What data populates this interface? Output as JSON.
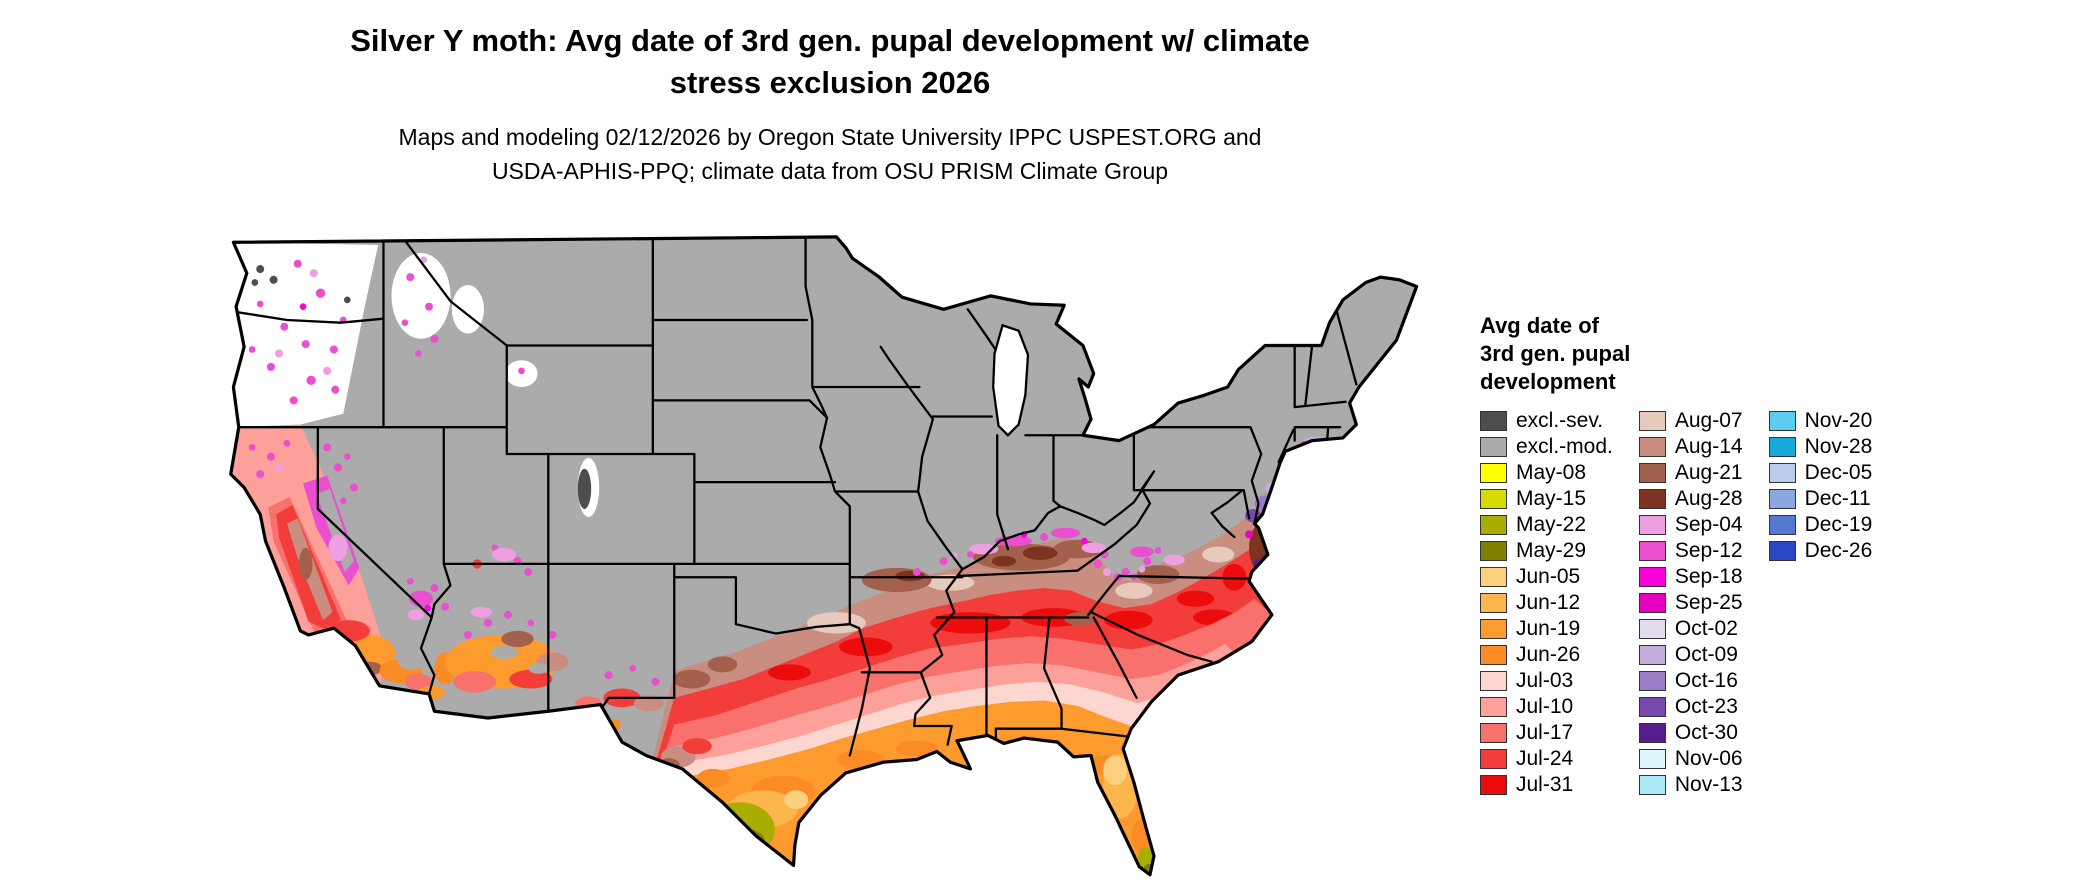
{
  "header": {
    "title_line1": "Silver Y moth: Avg date of 3rd gen. pupal development w/ climate",
    "title_line2": "stress exclusion 2026",
    "subtitle_line1": "Maps and modeling 02/12/2026 by Oregon State University IPPC USPEST.ORG and",
    "subtitle_line2": "USDA-APHIS-PPQ; climate data from OSU PRISM Climate Group"
  },
  "legend": {
    "title_lines": [
      "Avg date of",
      "3rd gen. pupal",
      "development"
    ],
    "columns": [
      [
        "excl.-sev.",
        "excl.-mod.",
        "May-08",
        "May-15",
        "May-22",
        "May-29",
        "Jun-05",
        "Jun-12",
        "Jun-19",
        "Jun-26",
        "Jul-03",
        "Jul-10",
        "Jul-17",
        "Jul-24",
        "Jul-31"
      ],
      [
        "Aug-07",
        "Aug-14",
        "Aug-21",
        "Aug-28",
        "Sep-04",
        "Sep-12",
        "Sep-18",
        "Sep-25",
        "Oct-02",
        "Oct-09",
        "Oct-16",
        "Oct-23",
        "Oct-30",
        "Nov-06",
        "Nov-13"
      ],
      [
        "Nov-20",
        "Nov-28",
        "Dec-05",
        "Dec-11",
        "Dec-19",
        "Dec-26"
      ]
    ]
  },
  "colors": {
    "excl.-sev.": "#4d4d4d",
    "excl.-mod.": "#ababab",
    "May-08": "#ffff00",
    "May-15": "#d4db00",
    "May-22": "#a9ad00",
    "May-29": "#7f7f00",
    "Jun-05": "#fdd07f",
    "Jun-12": "#fdb54d",
    "Jun-19": "#fd9b2f",
    "Jun-26": "#fb8c25",
    "Jul-03": "#fdd6d0",
    "Jul-10": "#fda09a",
    "Jul-17": "#f8716d",
    "Jul-24": "#f23d3a",
    "Jul-31": "#ec0c0c",
    "Aug-07": "#e8cabc",
    "Aug-14": "#c98e80",
    "Aug-21": "#a2604d",
    "Aug-28": "#7c3420",
    "Sep-04": "#ee9fe2",
    "Sep-12": "#ea4fd0",
    "Sep-18": "#fb02dc",
    "Sep-25": "#e600c0",
    "Oct-02": "#e2dcee",
    "Oct-09": "#c3addc",
    "Oct-16": "#9b7cc8",
    "Oct-23": "#7748ad",
    "Oct-30": "#541f8d",
    "Nov-06": "#dcf6fc",
    "Nov-13": "#ace9f7",
    "Nov-20": "#5bcdef",
    "Nov-28": "#19a9dd",
    "Dec-05": "#b9ccee",
    "Dec-11": "#8aa7e2",
    "Dec-19": "#5478d2",
    "Dec-26": "#2a46c4",
    "water": "#ffffff",
    "nodata": "#ffffff"
  }
}
